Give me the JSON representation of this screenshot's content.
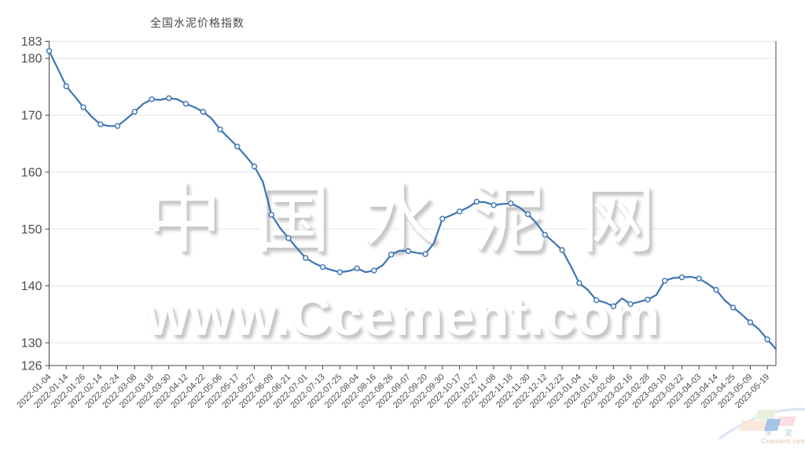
{
  "title": "全国水泥价格指数",
  "watermark": {
    "line1": "中国水泥网",
    "line2": "www.Ccement.com"
  },
  "logo": {
    "cn": "水 泥 网",
    "en": "Ccement.com"
  },
  "colors": {
    "line": "#3d74b4",
    "marker_fill": "#ffffff",
    "grid": "#e3e3e3",
    "axis": "#444444",
    "tick_label": "#4d4d4d",
    "title_text": "#4a4a4a",
    "watermark": "#ffffff",
    "logo_green": "#e6f2de",
    "logo_pink": "#fadee2",
    "logo_peach": "#fbe8dd",
    "logo_blue": "#a6c3e8",
    "logo_swoosh": "#dbe7f5"
  },
  "chart_data": {
    "type": "line",
    "title": "全国水泥价格指数",
    "xlabel": "",
    "ylabel": "",
    "ylim": [
      126,
      183
    ],
    "y_ticks": [
      "183",
      "180",
      "170",
      "160",
      "150",
      "140",
      "130",
      "126"
    ],
    "grid_y_values": [
      183,
      180,
      170,
      160,
      150,
      140,
      130
    ],
    "grid": true,
    "legend_position": "none",
    "label_every_n_points": 2,
    "categories": [
      "2022-01-04",
      "2022-01-14",
      "2022-01-26",
      "2022-02-14",
      "2022-02-24",
      "2022-03-08",
      "2022-03-18",
      "2022-03-30",
      "2022-04-12",
      "2022-04-22",
      "2022-05-06",
      "2022-05-17",
      "2022-05-27",
      "2022-06-09",
      "2022-06-21",
      "2022-07-01",
      "2022-07-13",
      "2022-07-25",
      "2022-08-04",
      "2022-08-16",
      "2022-08-26",
      "2022-09-07",
      "2022-09-20",
      "2022-09-30",
      "2022-10-17",
      "2022-10-27",
      "2022-11-08",
      "2022-11-18",
      "2022-11-30",
      "2022-12-12",
      "2022-12-22",
      "2023-01-04",
      "2023-01-16",
      "2023-02-06",
      "2023-02-16",
      "2023-02-28",
      "2023-03-10",
      "2023-03-22",
      "2023-04-03",
      "2023-04-14",
      "2023-04-25",
      "2023-05-09",
      "2023-05-19"
    ],
    "series": [
      {
        "name": "全国水泥价格指数",
        "values": [
          181.3,
          178.2,
          175.1,
          173.3,
          171.4,
          169.7,
          168.4,
          168.1,
          168.1,
          169.3,
          170.6,
          172.0,
          172.8,
          172.7,
          173.0,
          172.8,
          172.0,
          171.4,
          170.6,
          169.4,
          167.5,
          166.0,
          164.5,
          162.8,
          161.0,
          158.3,
          152.5,
          150.2,
          148.4,
          146.6,
          144.9,
          144.0,
          143.3,
          142.8,
          142.4,
          142.6,
          143.1,
          142.4,
          142.7,
          143.6,
          145.5,
          146.2,
          146.1,
          145.8,
          145.6,
          147.5,
          151.8,
          152.4,
          153.1,
          153.8,
          154.8,
          154.7,
          154.2,
          154.4,
          154.5,
          153.8,
          152.6,
          151.0,
          149.0,
          147.7,
          146.3,
          143.5,
          140.5,
          139.3,
          137.5,
          137.1,
          136.4,
          137.8,
          136.8,
          137.2,
          137.6,
          138.4,
          140.9,
          141.4,
          141.5,
          141.6,
          141.3,
          140.4,
          139.3,
          137.5,
          136.2,
          135.0,
          133.6,
          132.4,
          130.6,
          128.9
        ]
      }
    ]
  }
}
